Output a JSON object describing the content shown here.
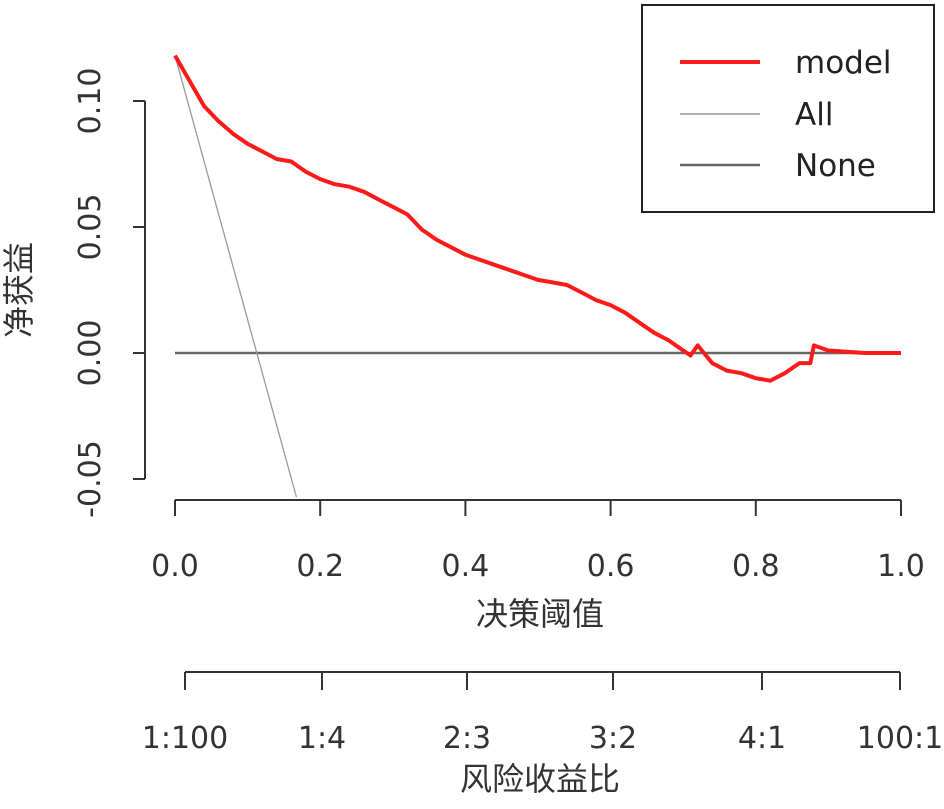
{
  "chart_data": {
    "type": "line",
    "xlabel": "决策阈值",
    "ylabel": "净获益",
    "secondary_axis_label": "风险收益比",
    "xlim": [
      0,
      1
    ],
    "ylim": [
      -0.06,
      0.12
    ],
    "x_ticks": [
      "0.0",
      "0.2",
      "0.4",
      "0.6",
      "0.8",
      "1.0"
    ],
    "x_tick_values": [
      0.0,
      0.2,
      0.4,
      0.6,
      0.8,
      1.0
    ],
    "y_ticks": [
      "-0.05",
      "0.00",
      "0.05",
      "0.10"
    ],
    "y_tick_values": [
      -0.05,
      0.0,
      0.05,
      0.1
    ],
    "secondary_ticks": [
      "1:100",
      "1:4",
      "2:3",
      "3:2",
      "4:1",
      "100:1"
    ],
    "legend": {
      "position": "top-right",
      "entries": [
        "model",
        "All",
        "None"
      ]
    },
    "series": [
      {
        "name": "model",
        "color": "#ff1a1a",
        "x": [
          0.0,
          0.02,
          0.04,
          0.06,
          0.08,
          0.1,
          0.12,
          0.14,
          0.16,
          0.18,
          0.2,
          0.22,
          0.24,
          0.26,
          0.28,
          0.3,
          0.32,
          0.34,
          0.36,
          0.38,
          0.4,
          0.42,
          0.44,
          0.46,
          0.48,
          0.5,
          0.52,
          0.54,
          0.56,
          0.58,
          0.6,
          0.62,
          0.64,
          0.66,
          0.68,
          0.7,
          0.71,
          0.72,
          0.74,
          0.76,
          0.78,
          0.8,
          0.82,
          0.84,
          0.86,
          0.875,
          0.88,
          0.9,
          0.95,
          1.0
        ],
        "y": [
          0.118,
          0.108,
          0.098,
          0.092,
          0.087,
          0.083,
          0.08,
          0.077,
          0.076,
          0.072,
          0.069,
          0.067,
          0.066,
          0.064,
          0.061,
          0.058,
          0.055,
          0.049,
          0.045,
          0.042,
          0.039,
          0.037,
          0.035,
          0.033,
          0.031,
          0.029,
          0.028,
          0.027,
          0.024,
          0.021,
          0.019,
          0.016,
          0.012,
          0.008,
          0.005,
          0.001,
          -0.001,
          0.003,
          -0.004,
          -0.007,
          -0.008,
          -0.01,
          -0.011,
          -0.008,
          -0.004,
          -0.004,
          0.003,
          0.001,
          0.0,
          0.0
        ]
      },
      {
        "name": "All",
        "color": "#999999",
        "x": [
          0.0,
          0.17
        ],
        "y": [
          0.118,
          -0.06
        ]
      },
      {
        "name": "None",
        "color": "#666666",
        "x": [
          0.0,
          1.0
        ],
        "y": [
          0.0,
          0.0
        ]
      }
    ]
  }
}
